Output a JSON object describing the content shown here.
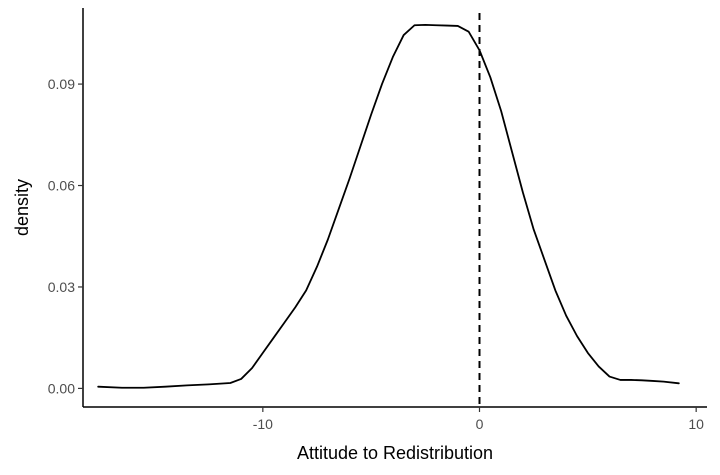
{
  "chart_data": {
    "type": "area",
    "title": "",
    "xlabel": "Attitude to Redistribution",
    "ylabel": "density",
    "xlim": [
      -18.3,
      10.5
    ],
    "ylim": [
      -0.0055,
      0.1125
    ],
    "x_ticks": [
      -10,
      0,
      10
    ],
    "y_ticks": [
      0.0,
      0.03,
      0.06,
      0.09
    ],
    "x_tick_labels": [
      "-10",
      "0",
      "10"
    ],
    "y_tick_labels": [
      "0.00",
      "0.03",
      "0.06",
      "0.09"
    ],
    "grid": false,
    "vline": {
      "x": 0,
      "style": "dashed",
      "color": "#000000"
    },
    "series": [
      {
        "color": "#000000",
        "x": [
          -17.6,
          -16.5,
          -15.5,
          -14.5,
          -13.5,
          -12.5,
          -11.5,
          -11.0,
          -10.5,
          -10.0,
          -9.5,
          -9.0,
          -8.5,
          -8.0,
          -7.5,
          -7.0,
          -6.5,
          -6.0,
          -5.5,
          -5.0,
          -4.5,
          -4.0,
          -3.5,
          -3.0,
          -2.5,
          -2.0,
          -1.5,
          -1.0,
          -0.5,
          0.0,
          0.5,
          1.0,
          1.5,
          2.0,
          2.5,
          3.0,
          3.5,
          4.0,
          4.5,
          5.0,
          5.5,
          6.0,
          6.5,
          7.0,
          7.5,
          8.0,
          8.5,
          9.2
        ],
        "y": [
          0.0005,
          0.0002,
          0.0002,
          0.0005,
          0.0009,
          0.0012,
          0.0016,
          0.0028,
          0.006,
          0.0105,
          0.015,
          0.0195,
          0.024,
          0.029,
          0.036,
          0.044,
          0.053,
          0.062,
          0.0715,
          0.081,
          0.09,
          0.098,
          0.1045,
          0.1074,
          0.1075,
          0.1074,
          0.1073,
          0.1072,
          0.1055,
          0.1,
          0.092,
          0.082,
          0.07,
          0.058,
          0.047,
          0.038,
          0.029,
          0.0215,
          0.0155,
          0.0105,
          0.0065,
          0.0035,
          0.0025,
          0.0025,
          0.0024,
          0.0022,
          0.002,
          0.0015
        ]
      }
    ]
  }
}
